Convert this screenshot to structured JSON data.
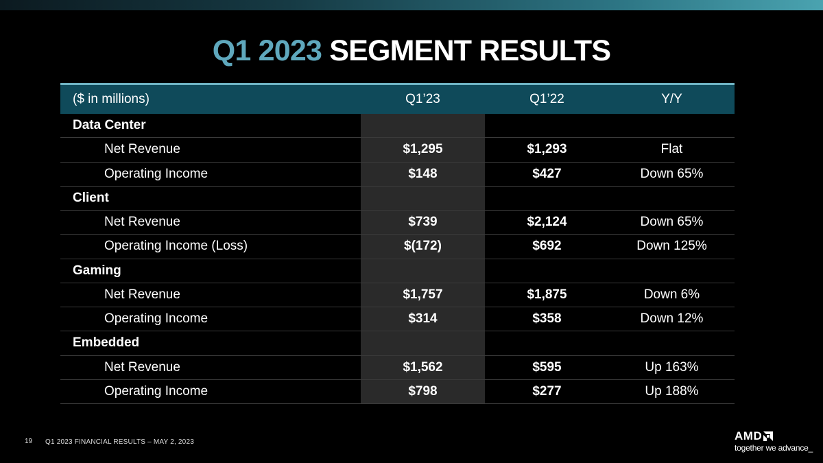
{
  "slide": {
    "title_accent": "Q1 2023",
    "title_rest": "SEGMENT RESULTS",
    "page_number": "19",
    "footer": "Q1 2023 FINANCIAL RESULTS – MAY 2, 2023",
    "logo_text": "AMD",
    "tagline": "together we advance_"
  },
  "colors": {
    "accent": "#5fa8bd",
    "header_bg": "#0f4a5a",
    "highlight_col": "#2a2a2a"
  },
  "table": {
    "headers": [
      "($ in millions)",
      "Q1’23",
      "Q1’22",
      "Y/Y"
    ],
    "rows": [
      {
        "type": "section",
        "label": "Data Center"
      },
      {
        "type": "item",
        "label": "Net Revenue",
        "q1_23": "$1,295",
        "q1_22": "$1,293",
        "yoy": "Flat"
      },
      {
        "type": "item",
        "label": "Operating Income",
        "q1_23": "$148",
        "q1_22": "$427",
        "yoy": "Down 65%"
      },
      {
        "type": "section",
        "label": "Client"
      },
      {
        "type": "item",
        "label": "Net Revenue",
        "q1_23": "$739",
        "q1_22": "$2,124",
        "yoy": "Down 65%"
      },
      {
        "type": "item",
        "label": "Operating Income (Loss)",
        "q1_23": "$(172)",
        "q1_22": "$692",
        "yoy": "Down 125%"
      },
      {
        "type": "section",
        "label": "Gaming"
      },
      {
        "type": "item",
        "label": "Net Revenue",
        "q1_23": "$1,757",
        "q1_22": "$1,875",
        "yoy": "Down 6%"
      },
      {
        "type": "item",
        "label": "Operating Income",
        "q1_23": "$314",
        "q1_22": "$358",
        "yoy": "Down 12%"
      },
      {
        "type": "section",
        "label": "Embedded"
      },
      {
        "type": "item",
        "label": "Net Revenue",
        "q1_23": "$1,562",
        "q1_22": "$595",
        "yoy": "Up 163%"
      },
      {
        "type": "item",
        "label": "Operating Income",
        "q1_23": "$798",
        "q1_22": "$277",
        "yoy": "Up 188%"
      }
    ]
  }
}
